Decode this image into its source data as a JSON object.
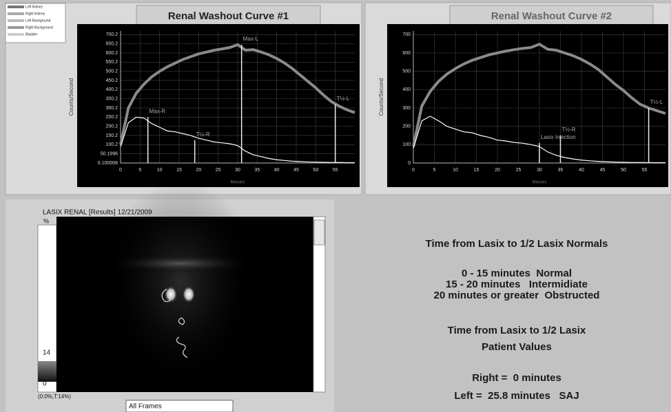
{
  "chart_data": [
    {
      "type": "line",
      "title": "Renal Washout Curve #1",
      "y_label": "Counts/Second",
      "x_label": "Minutes",
      "xlim": [
        0,
        60
      ],
      "xticks": [
        0,
        5,
        10,
        15,
        20,
        25,
        30,
        35,
        40,
        45,
        50,
        55
      ],
      "ylim": [
        0.100006,
        720
      ],
      "yticks": [
        0.100006,
        50.1996,
        100.2,
        150.2,
        200.2,
        250.2,
        300.2,
        350.2,
        400.2,
        450.2,
        500.2,
        550.2,
        600.2,
        650.2,
        700.2
      ],
      "grid": true,
      "x": [
        0,
        2,
        4,
        6,
        8,
        10,
        12,
        14,
        16,
        18,
        20,
        22,
        24,
        26,
        28,
        30,
        32,
        34,
        36,
        38,
        40,
        42,
        44,
        46,
        48,
        50,
        52,
        54,
        56,
        58,
        60
      ],
      "series": [
        {
          "color": "#8a8a8a",
          "values": [
            100,
            300,
            380,
            430,
            470,
            500,
            525,
            545,
            565,
            580,
            595,
            605,
            615,
            622,
            630,
            645,
            615,
            618,
            605,
            590,
            570,
            545,
            515,
            480,
            445,
            410,
            370,
            335,
            310,
            290,
            275
          ]
        },
        {
          "color": "#ffffff",
          "values": [
            90,
            220,
            250,
            245,
            215,
            195,
            175,
            170,
            160,
            150,
            135,
            125,
            115,
            110,
            105,
            95,
            65,
            45,
            35,
            25,
            18,
            14,
            10,
            8,
            6,
            5,
            4,
            3,
            3,
            2,
            2
          ]
        }
      ],
      "markers": [
        {
          "label": "Max-R",
          "x": 7,
          "y": 250
        },
        {
          "label": "T½-R",
          "x": 19,
          "y": 125
        },
        {
          "label": "Max-L",
          "x": 31,
          "y": 645
        },
        {
          "label": "T½-L",
          "x": 55,
          "y": 320
        }
      ]
    },
    {
      "type": "line",
      "title": "Renal Washout Curve #2",
      "y_label": "Counts/Second",
      "x_label": "Minutes",
      "xlim": [
        0,
        60
      ],
      "xticks": [
        0,
        5,
        10,
        15,
        20,
        25,
        30,
        35,
        40,
        45,
        50,
        55
      ],
      "ylim": [
        0,
        720
      ],
      "yticks": [
        0,
        100,
        200,
        300,
        400,
        500,
        600,
        700
      ],
      "grid": true,
      "x": [
        0,
        2,
        4,
        6,
        8,
        10,
        12,
        14,
        16,
        18,
        20,
        22,
        24,
        26,
        28,
        30,
        32,
        34,
        36,
        38,
        40,
        42,
        44,
        46,
        48,
        50,
        52,
        54,
        56,
        58,
        60
      ],
      "series": [
        {
          "color": "#8a8a8a",
          "values": [
            90,
            310,
            390,
            445,
            485,
            515,
            540,
            560,
            575,
            590,
            600,
            610,
            618,
            625,
            630,
            648,
            620,
            615,
            600,
            585,
            565,
            540,
            510,
            470,
            430,
            395,
            355,
            320,
            300,
            285,
            270
          ]
        },
        {
          "color": "#ffffff",
          "values": [
            80,
            230,
            255,
            230,
            200,
            185,
            170,
            165,
            150,
            140,
            125,
            120,
            112,
            108,
            100,
            90,
            60,
            42,
            30,
            22,
            16,
            12,
            9,
            7,
            5,
            4,
            3,
            3,
            2,
            2,
            2
          ]
        }
      ],
      "markers": [
        {
          "label": "Lasix Injection",
          "x": 30,
          "y": 110
        },
        {
          "label": "T½-R",
          "x": 35,
          "y": 150
        },
        {
          "label": "T½-L",
          "x": 56,
          "y": 300
        }
      ]
    }
  ],
  "legend": [
    "Left Kidney",
    "Right Kidney",
    "Left Background",
    "Right Background",
    "Bladder"
  ],
  "image_panel": {
    "title": "LASIX RENAL [Results] 12/21/2009",
    "unit": "%",
    "scale_max": "14",
    "scale_min": "0",
    "status": "(0:0%,T:14%)",
    "frames": "All Frames"
  },
  "info": {
    "normals_title": "Time from Lasix to 1/2 Lasix Normals",
    "normals": [
      "0 - 15 minutes  Normal",
      "15 - 20 minutes   Intermidiate",
      "20 minutes or greater  Obstructed"
    ],
    "patient_title": [
      "Time from Lasix to 1/2 Lasix",
      "Patient Values"
    ],
    "patient_values": [
      "Right =  0 minutes",
      "Left =  25.8 minutes   SAJ"
    ]
  }
}
